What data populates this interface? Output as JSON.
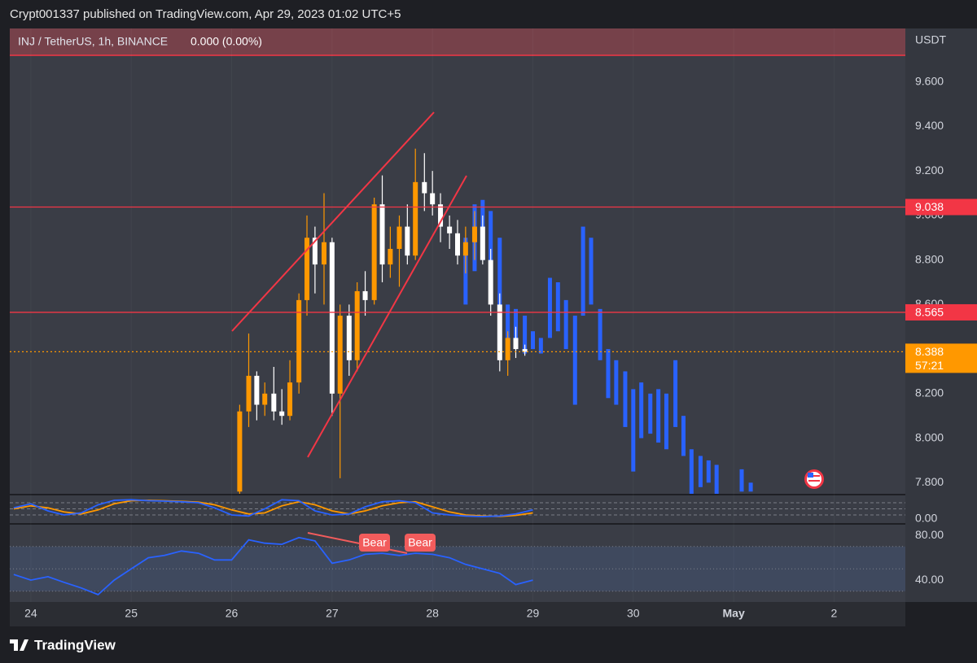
{
  "page": {
    "publisher_line": "Crypt001337 published on TradingView.com, Apr 29, 2023 01:02 UTC+5",
    "brand": "TradingView"
  },
  "chart_data": [
    {
      "type": "candlestick",
      "title": "INJ / TetherUS, 1h, BINANCE",
      "change": "0.000 (0.00%)",
      "currency": "USDT",
      "xlim": [
        23.79,
        32.71
      ],
      "xticks": [
        24,
        25,
        26,
        27,
        28,
        29,
        30,
        {
          "value": 31,
          "label": "May"
        },
        {
          "value": 32,
          "label": "2"
        }
      ],
      "ylim": [
        7.75,
        9.84
      ],
      "yticks": [
        {
          "value": 7.8,
          "label": "7.800"
        },
        {
          "value": 8.0,
          "label": "8.000"
        },
        {
          "value": 8.2,
          "label": "8.200"
        },
        {
          "value": 8.4,
          "label": "8.400"
        },
        {
          "value": 8.6,
          "label": "8.600"
        },
        {
          "value": 8.8,
          "label": "8.800"
        },
        {
          "value": 9.0,
          "label": "9.000"
        },
        {
          "value": 9.2,
          "label": "9.200"
        },
        {
          "value": 9.4,
          "label": "9.400"
        },
        {
          "value": 9.6,
          "label": "9.600"
        }
      ],
      "hlines": [
        {
          "value": 9.038,
          "color": "#f23645"
        },
        {
          "value": 8.565,
          "color": "#f23645"
        }
      ],
      "last_price": 8.388,
      "last_price_color": "#ff9800",
      "countdown": "57:21",
      "series": [
        {
          "style": "bars",
          "color": "#2962ff",
          "x": [
            28.33,
            28.42,
            28.5,
            28.58,
            28.67,
            28.75,
            28.83,
            28.92,
            29,
            29.08,
            29.17,
            29.25,
            29.33,
            29.42,
            29.5,
            29.58,
            29.67,
            29.75,
            29.83,
            29.92,
            30,
            30.08,
            30.17,
            30.25,
            30.33,
            30.42,
            30.5,
            30.58,
            30.67,
            30.75,
            30.83,
            31.08,
            31.17
          ],
          "high": [
            8.9,
            9.05,
            9.07,
            9.02,
            8.9,
            8.6,
            8.58,
            8.55,
            8.48,
            8.45,
            8.72,
            8.7,
            8.62,
            8.55,
            8.95,
            8.9,
            8.58,
            8.4,
            8.35,
            8.3,
            8.22,
            8.25,
            8.2,
            8.22,
            8.2,
            8.35,
            8.1,
            7.95,
            7.92,
            7.9,
            7.88,
            7.86,
            7.8
          ],
          "low": [
            8.6,
            8.75,
            8.8,
            8.7,
            8.55,
            8.35,
            8.42,
            8.38,
            8.4,
            8.38,
            8.45,
            8.48,
            8.4,
            8.15,
            8.55,
            8.6,
            8.35,
            8.18,
            8.15,
            8.05,
            7.85,
            8.0,
            8.02,
            7.98,
            7.95,
            8.05,
            7.92,
            7.75,
            7.78,
            7.8,
            7.75,
            7.76,
            7.76
          ]
        },
        {
          "style": "candles",
          "color_up": "#ff9800",
          "color_down": "#ffffff",
          "x": [
            26.08,
            26.17,
            26.25,
            26.33,
            26.42,
            26.5,
            26.58,
            26.67,
            26.75,
            26.83,
            26.92,
            27,
            27.08,
            27.17,
            27.25,
            27.33,
            27.42,
            27.5,
            27.58,
            27.67,
            27.75,
            27.83,
            27.92,
            28,
            28.08,
            28.17,
            28.25,
            28.33,
            28.42,
            28.5,
            28.58,
            28.67,
            28.75,
            28.83,
            28.92
          ],
          "open": [
            7.76,
            8.12,
            8.28,
            8.15,
            8.2,
            8.12,
            8.1,
            8.25,
            8.62,
            8.9,
            8.78,
            8.88,
            8.2,
            8.55,
            8.35,
            8.66,
            8.62,
            9.05,
            8.78,
            8.85,
            8.95,
            8.82,
            9.15,
            9.1,
            9.05,
            8.95,
            8.92,
            8.82,
            8.88,
            8.95,
            8.8,
            8.6,
            8.35,
            8.45,
            8.4
          ],
          "high": [
            8.15,
            8.47,
            8.3,
            8.25,
            8.32,
            8.22,
            8.35,
            8.65,
            9.0,
            8.95,
            9.1,
            8.9,
            8.6,
            8.6,
            8.7,
            8.75,
            9.08,
            9.18,
            8.95,
            9.0,
            9.05,
            9.3,
            9.28,
            9.2,
            9.1,
            9.0,
            8.98,
            8.95,
            9.02,
            9.0,
            8.85,
            8.65,
            8.48,
            8.5,
            8.42
          ],
          "low": [
            7.75,
            8.05,
            8.08,
            8.1,
            8.08,
            8.06,
            8.08,
            8.2,
            8.55,
            8.65,
            8.6,
            8.1,
            7.82,
            8.28,
            8.3,
            8.55,
            8.6,
            8.7,
            8.72,
            8.68,
            8.78,
            8.8,
            9.02,
            9.0,
            8.88,
            8.85,
            8.78,
            8.74,
            8.8,
            8.78,
            8.55,
            8.3,
            8.28,
            8.36,
            8.37
          ],
          "close": [
            8.12,
            8.28,
            8.15,
            8.2,
            8.12,
            8.1,
            8.25,
            8.62,
            8.9,
            8.78,
            8.88,
            8.2,
            8.55,
            8.35,
            8.66,
            8.62,
            9.05,
            8.78,
            8.85,
            8.95,
            8.82,
            9.15,
            9.1,
            9.05,
            8.95,
            8.92,
            8.82,
            8.88,
            8.95,
            8.8,
            8.6,
            8.35,
            8.45,
            8.4,
            8.388
          ]
        }
      ]
    },
    {
      "type": "line",
      "ylim": [
        -20,
        120
      ],
      "yticks": [
        {
          "value": 0,
          "label": "0.00"
        }
      ],
      "hlines": [
        80,
        50,
        20
      ],
      "x": [
        23.83,
        24,
        24.17,
        24.33,
        24.5,
        24.67,
        24.83,
        25,
        25.17,
        25.33,
        25.5,
        25.67,
        25.83,
        26,
        26.17,
        26.33,
        26.5,
        26.67,
        26.83,
        27,
        27.17,
        27.33,
        27.5,
        27.67,
        27.83,
        28,
        28.17,
        28.33,
        28.5,
        28.67,
        28.83,
        29
      ],
      "series": [
        {
          "color": "#ff9800",
          "values": [
            50,
            65,
            55,
            35,
            25,
            45,
            75,
            90,
            92,
            90,
            87,
            83,
            70,
            45,
            25,
            30,
            65,
            85,
            70,
            40,
            25,
            40,
            65,
            80,
            85,
            60,
            35,
            20,
            15,
            13,
            18,
            30
          ]
        },
        {
          "color": "#2962ff",
          "values": [
            55,
            75,
            40,
            20,
            30,
            70,
            92,
            95,
            90,
            88,
            85,
            80,
            55,
            20,
            15,
            50,
            95,
            90,
            40,
            20,
            25,
            60,
            85,
            90,
            80,
            30,
            20,
            15,
            12,
            15,
            25,
            45
          ]
        }
      ]
    },
    {
      "type": "line",
      "ylim": [
        20.4,
        89.5
      ],
      "yticks": [
        {
          "value": 80,
          "label": "80.00"
        },
        {
          "value": 40,
          "label": "40.00"
        }
      ],
      "hlines": [
        70,
        50,
        30
      ],
      "annotations": [
        "Bear",
        "Bear"
      ],
      "x": [
        23.83,
        24,
        24.17,
        24.33,
        24.5,
        24.67,
        24.83,
        25,
        25.17,
        25.33,
        25.5,
        25.67,
        25.83,
        26,
        26.17,
        26.33,
        26.5,
        26.67,
        26.83,
        27,
        27.17,
        27.33,
        27.5,
        27.67,
        27.83,
        28,
        28.17,
        28.33,
        28.5,
        28.67,
        28.83,
        29
      ],
      "series": [
        {
          "color": "#2962ff",
          "values": [
            45,
            40,
            43,
            38,
            33,
            27,
            40,
            50,
            60,
            62,
            66,
            64,
            58,
            58,
            76,
            73,
            72,
            78,
            75,
            55,
            58,
            63,
            64,
            62,
            64,
            63,
            60,
            54,
            50,
            46,
            36,
            40
          ]
        }
      ]
    }
  ]
}
